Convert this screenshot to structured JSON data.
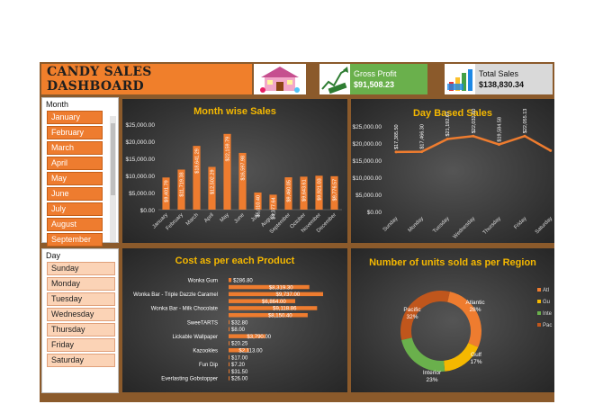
{
  "dashboard": {
    "title": "CANDY SALES DASHBOARD"
  },
  "kpis": {
    "gross_profit": {
      "label": "Gross Profit",
      "value": "$91,508.23",
      "icon": "profit-chart-icon"
    },
    "total_sales": {
      "label": "Total Sales",
      "value": "$138,830.34",
      "icon": "sales-chart-icon"
    }
  },
  "slicers": {
    "month": {
      "title": "Month",
      "items": [
        "January",
        "February",
        "March",
        "April",
        "May",
        "June",
        "July",
        "August",
        "September"
      ]
    },
    "day": {
      "title": "Day",
      "items": [
        "Sunday",
        "Monday",
        "Tuesday",
        "Wednesday",
        "Thursday",
        "Friday",
        "Saturday"
      ]
    }
  },
  "colors": {
    "accent": "#f07f2b",
    "title_yellow": "#f5b800",
    "bar": "#ee7c2f",
    "profit_green": "#6ab04c"
  },
  "chart_data": [
    {
      "type": "bar",
      "title": "Month wise Sales",
      "categories": [
        "January",
        "February",
        "March",
        "April",
        "May",
        "June",
        "July",
        "August",
        "September",
        "October",
        "November",
        "December"
      ],
      "values": [
        9401.79,
        11719.38,
        18641.29,
        12502.29,
        22159.79,
        16597.98,
        5010.4,
        4377.64,
        9460.05,
        9643.61,
        9921.03,
        9776.57
      ],
      "value_labels": [
        "$9,401.79",
        "$11,719.38",
        "$18,641.29",
        "$12,502.29",
        "$22,159.79",
        "$16,597.98",
        "$5,010.40",
        "$4,377.64",
        "$9,460.05",
        "$9,643.61",
        "$9,921.03",
        "$9,776.57"
      ],
      "yticks": [
        "$0.00",
        "$5,000.00",
        "$10,000.00",
        "$15,000.00",
        "$20,000.00",
        "$25,000.00"
      ],
      "ylim": [
        0,
        25000
      ]
    },
    {
      "type": "line",
      "title": "Day Based Sales",
      "categories": [
        "Sunday",
        "Monday",
        "Tuesday",
        "Wednesday",
        "Thursday",
        "Friday",
        "Saturday"
      ],
      "values": [
        17385.5,
        17466.3,
        21192.67,
        22032.6,
        19584.58,
        22055.13,
        17800
      ],
      "value_labels": [
        "$17,385.50",
        "$17,466.30",
        "$21,192.67",
        "$22,032.60",
        "$19,584.58",
        "$22,055.13",
        ""
      ],
      "yticks": [
        "$0.00",
        "$5,000.00",
        "$10,000.00",
        "$15,000.00",
        "$20,000.00",
        "$25,000.00"
      ],
      "ylim": [
        0,
        25000
      ]
    },
    {
      "type": "bar",
      "orientation": "horizontal",
      "title": "Cost as per each Product",
      "categories": [
        "Wonka Gum",
        "",
        "Wonka Bar - Triple Dazzle Caramel",
        "",
        "Wonka Bar - Milk Chocolate",
        "",
        "SweeTARTS",
        "",
        "Lickable Wallpaper",
        "",
        "Kazookles",
        "",
        "Fun Dip",
        "",
        "Everlasting Gobstopper"
      ],
      "values": [
        286.8,
        8319.3,
        9737,
        6864,
        9118.86,
        8150.4,
        32.8,
        8,
        3790,
        20.25,
        2113,
        17,
        7.2,
        31.5,
        26
      ],
      "value_labels": [
        "$286.80",
        "$8,319.30",
        "$9,737.00",
        "$6,864.00",
        "$9,118.86",
        "$8,150.40",
        "$32.80",
        "$8.00",
        "$3,790.00",
        "$20.25",
        "$2,113.00",
        "$17.00",
        "$7.20",
        "$31.50",
        "$26.00"
      ]
    },
    {
      "type": "pie",
      "title": "Number of units sold as per Region",
      "slices": [
        {
          "name": "Atlantic",
          "value": 28,
          "label": "Atlantic\n28%",
          "color": "#ee7c2f"
        },
        {
          "name": "Gulf",
          "value": 17,
          "label": "Gulf\n17%",
          "color": "#f5b800"
        },
        {
          "name": "Interior",
          "value": 23,
          "label": "Interior\n23%",
          "color": "#6ab04c"
        },
        {
          "name": "Pacific",
          "value": 32,
          "label": "Pacific\n32%",
          "color": "#c0561c"
        }
      ],
      "legend": [
        "Atl",
        "Gu",
        "Inte",
        "Pac"
      ],
      "legend_position": "right"
    }
  ]
}
